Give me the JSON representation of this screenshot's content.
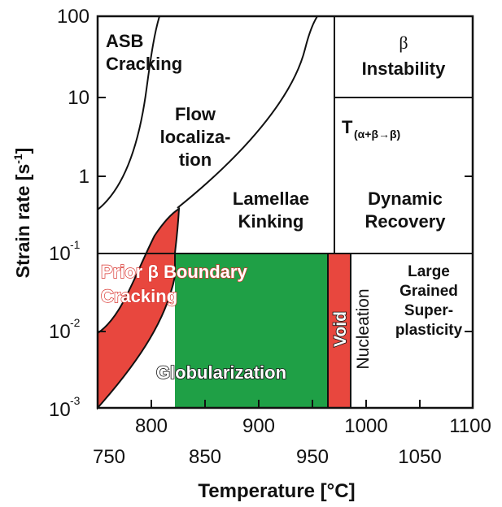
{
  "axes": {
    "xlabel": "Temperature [°C]",
    "ylabel_main": "Strain rate [s",
    "ylabel_sup": "-1",
    "ylabel_end": "]",
    "x_top_ticks": [
      "800",
      "900",
      "1000",
      "1100"
    ],
    "x_bottom_ticks": [
      "750",
      "850",
      "950",
      "1050"
    ],
    "y_ticks": [
      {
        "base": "100",
        "exp": ""
      },
      {
        "base": "10",
        "exp": ""
      },
      {
        "base": "1",
        "exp": ""
      },
      {
        "base": "10",
        "exp": "-1"
      },
      {
        "base": "10",
        "exp": "-2"
      },
      {
        "base": "10",
        "exp": "-3"
      }
    ],
    "xlim": [
      750,
      1100
    ],
    "ylim": [
      0.001,
      100
    ],
    "yscale": "log"
  },
  "regions": {
    "asb": [
      "ASB",
      "Cracking"
    ],
    "flow": [
      "Flow",
      "localiza-",
      "tion"
    ],
    "beta_symbol": "β",
    "beta_instability": "Instability",
    "transus_T": "T",
    "transus_sub": "(α+β→β)",
    "lamellae": [
      "Lamellae",
      "Kinking"
    ],
    "dynamic": [
      "Dynamic",
      "Recovery"
    ],
    "prior_beta": [
      "Prior β Boundary",
      "Cracking"
    ],
    "globularization": "Globularization",
    "void": "Void",
    "nucleation": "Nucleation",
    "large_grained": [
      "Large",
      "Grained",
      "Super-",
      "plasticity"
    ]
  },
  "colors": {
    "globularization_fill": "#1fa046",
    "cracking_fill": "#e8473e",
    "void_fill": "#e8473e",
    "line": "#111111"
  }
}
